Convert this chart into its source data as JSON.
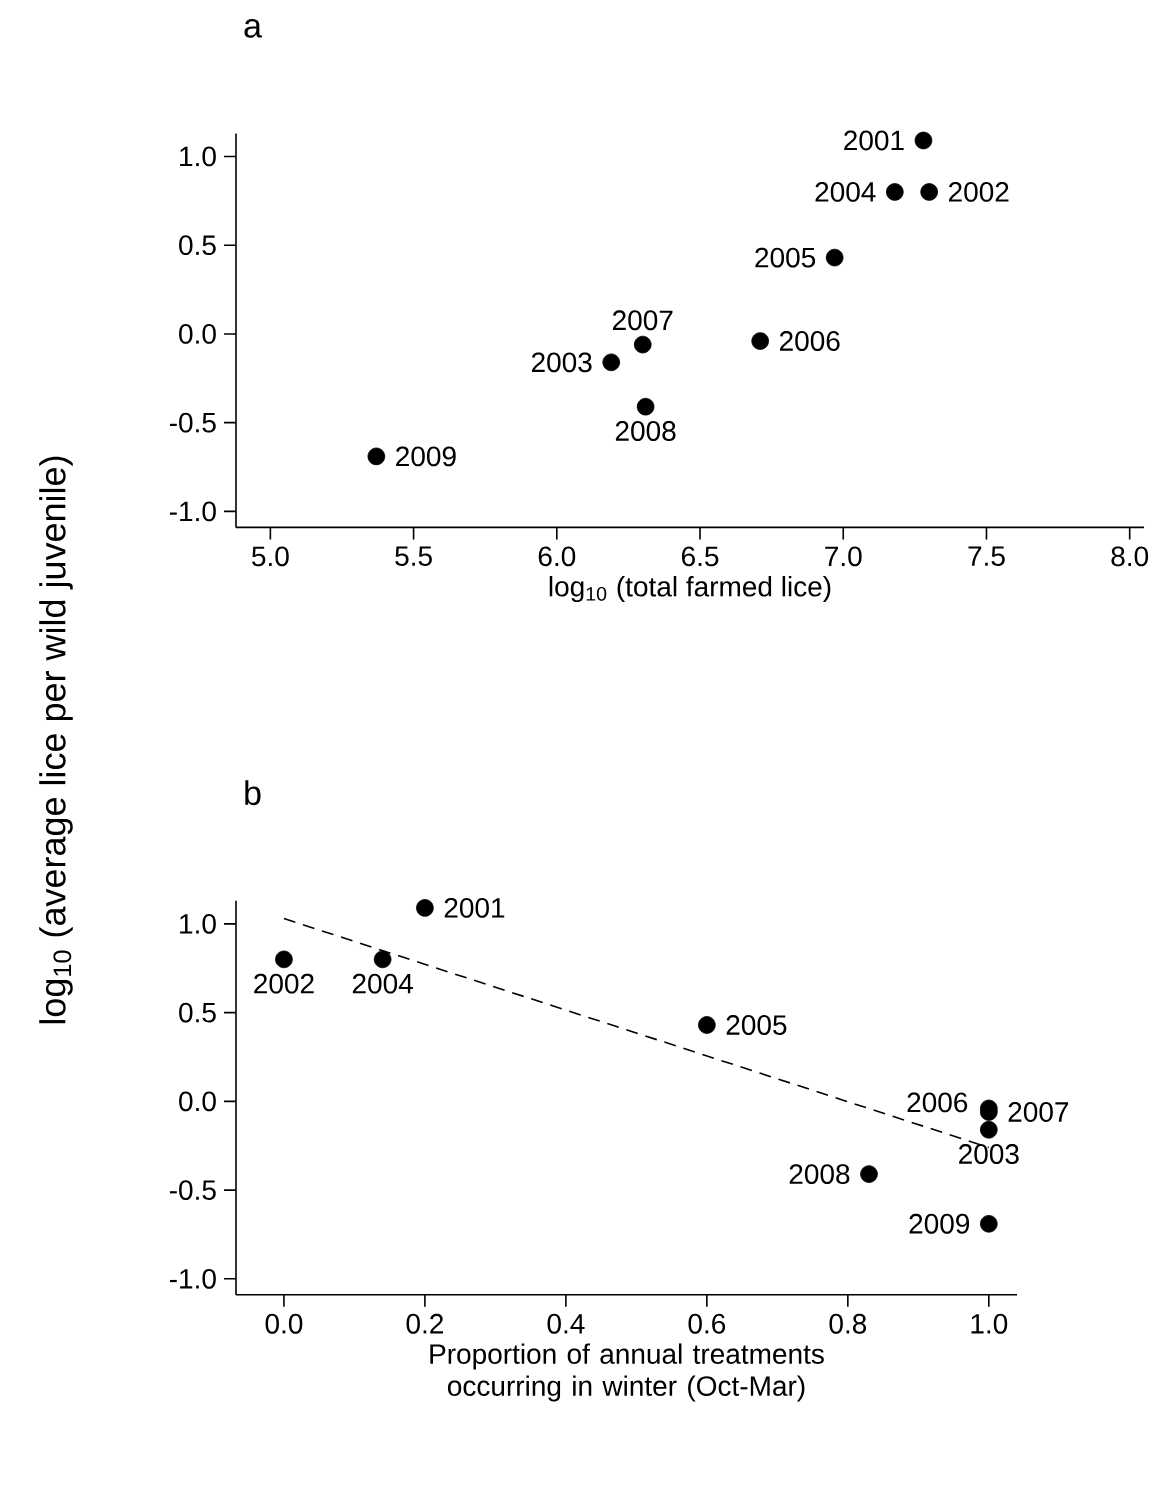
{
  "chart_data": [
    {
      "type": "scatter",
      "title": "a",
      "xlabel": "log$_{10}$ (total farmed lice)",
      "ylabel": "log$_{10}$ (average lice per wild juvenile)",
      "xlim": [
        4.88,
        8.05
      ],
      "ylim": [
        -1.09,
        1.13
      ],
      "xticks": [
        {
          "value": 5,
          "label": "5.0"
        },
        {
          "value": 5.5,
          "label": "5.5"
        },
        {
          "value": 6,
          "label": "6.0"
        },
        {
          "value": 6.5,
          "label": "6.5"
        },
        {
          "value": 7,
          "label": "7.0"
        },
        {
          "value": 7.5,
          "label": "7.5"
        },
        {
          "value": 8,
          "label": "8.0"
        }
      ],
      "yticks": [
        {
          "value": -1,
          "label": "-1.0"
        },
        {
          "value": -0.5,
          "label": "-0.5"
        },
        {
          "value": 0,
          "label": "0.0"
        },
        {
          "value": 0.5,
          "label": "0.5"
        },
        {
          "value": 1,
          "label": "1.0"
        }
      ],
      "marker": "circle",
      "series": [
        {
          "color": "#000000",
          "x": [
            7.28,
            7.3,
            6.19,
            7.18,
            6.97,
            6.71,
            6.3,
            6.31,
            5.37
          ],
          "values": [
            1.09,
            0.8,
            -0.16,
            0.8,
            0.43,
            -0.04,
            -0.06,
            -0.41,
            -0.69
          ]
        }
      ],
      "annotations": [
        {
          "text": "2001",
          "x": 7.28,
          "y": 1.09
        },
        {
          "text": "2002",
          "x": 7.3,
          "y": 0.8
        },
        {
          "text": "2003",
          "x": 6.19,
          "y": -0.16
        },
        {
          "text": "2004",
          "x": 7.18,
          "y": 0.8
        },
        {
          "text": "2005",
          "x": 6.97,
          "y": 0.43
        },
        {
          "text": "2006",
          "x": 6.71,
          "y": -0.04
        },
        {
          "text": "2007",
          "x": 6.3,
          "y": -0.06
        },
        {
          "text": "2008",
          "x": 6.31,
          "y": -0.41
        },
        {
          "text": "2009",
          "x": 5.37,
          "y": -0.69
        }
      ]
    },
    {
      "type": "scatter",
      "title": "b",
      "xlabel": "Proportion of annual treatments occurring in winter (Oct-Mar)",
      "xlim": [
        -0.068,
        1.04
      ],
      "ylim": [
        -1.09,
        1.13
      ],
      "xticks": [
        {
          "value": 0,
          "label": "0.0"
        },
        {
          "value": 0.2,
          "label": "0.2"
        },
        {
          "value": 0.4,
          "label": "0.4"
        },
        {
          "value": 0.6,
          "label": "0.6"
        },
        {
          "value": 0.8,
          "label": "0.8"
        },
        {
          "value": 1,
          "label": "1.0"
        }
      ],
      "yticks": [
        {
          "value": -1,
          "label": "-1.0"
        },
        {
          "value": -0.5,
          "label": "-0.5"
        },
        {
          "value": 0,
          "label": "0.0"
        },
        {
          "value": 0.5,
          "label": "0.5"
        },
        {
          "value": 1,
          "label": "1.0"
        }
      ],
      "marker": "circle",
      "series": [
        {
          "color": "#000000",
          "x": [
            0.2,
            0.0,
            1.0,
            0.14,
            0.6,
            1.0,
            1.0,
            0.83,
            1.0
          ],
          "values": [
            1.09,
            0.8,
            -0.16,
            0.8,
            0.43,
            -0.04,
            -0.06,
            -0.41,
            -0.69
          ]
        },
        {
          "type": "line",
          "marker": "none",
          "line_style": "dashed",
          "color": "#000000",
          "x": [
            0,
            1
          ],
          "values": [
            1.03,
            -0.26
          ]
        }
      ],
      "annotations": [
        {
          "text": "2001",
          "x": 0.2,
          "y": 1.09
        },
        {
          "text": "2002",
          "x": 0.0,
          "y": 0.8
        },
        {
          "text": "2003",
          "x": 1.0,
          "y": -0.16
        },
        {
          "text": "2004",
          "x": 0.14,
          "y": 0.8
        },
        {
          "text": "2005",
          "x": 0.6,
          "y": 0.43
        },
        {
          "text": "2006",
          "x": 1.0,
          "y": -0.04
        },
        {
          "text": "2007",
          "x": 1.0,
          "y": -0.06
        },
        {
          "text": "2008",
          "x": 0.83,
          "y": -0.41
        },
        {
          "text": "2009",
          "x": 1.0,
          "y": -0.69
        }
      ]
    }
  ]
}
